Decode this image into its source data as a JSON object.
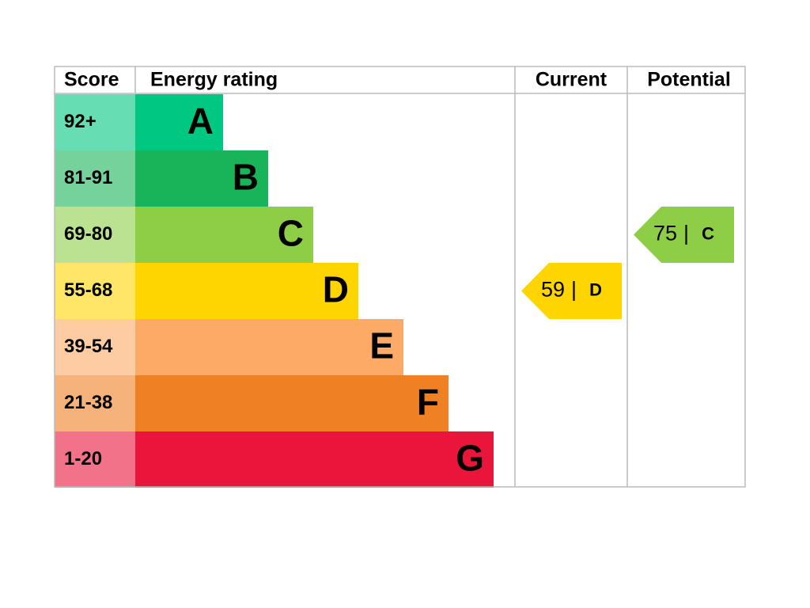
{
  "header": {
    "score": "Score",
    "rating": "Energy rating",
    "current": "Current",
    "potential": "Potential"
  },
  "bands": [
    {
      "score": "92+",
      "letter": "A",
      "color": "#00c781"
    },
    {
      "score": "81-91",
      "letter": "B",
      "color": "#19b459"
    },
    {
      "score": "69-80",
      "letter": "C",
      "color": "#8dce46"
    },
    {
      "score": "55-68",
      "letter": "D",
      "color": "#ffd500"
    },
    {
      "score": "39-54",
      "letter": "E",
      "color": "#fcaa65"
    },
    {
      "score": "21-38",
      "letter": "F",
      "color": "#ef8023"
    },
    {
      "score": "1-20",
      "letter": "G",
      "color": "#e9153b"
    }
  ],
  "separator": "|",
  "current": {
    "value": 59,
    "letter": "D"
  },
  "potential": {
    "value": 75,
    "letter": "C"
  }
}
